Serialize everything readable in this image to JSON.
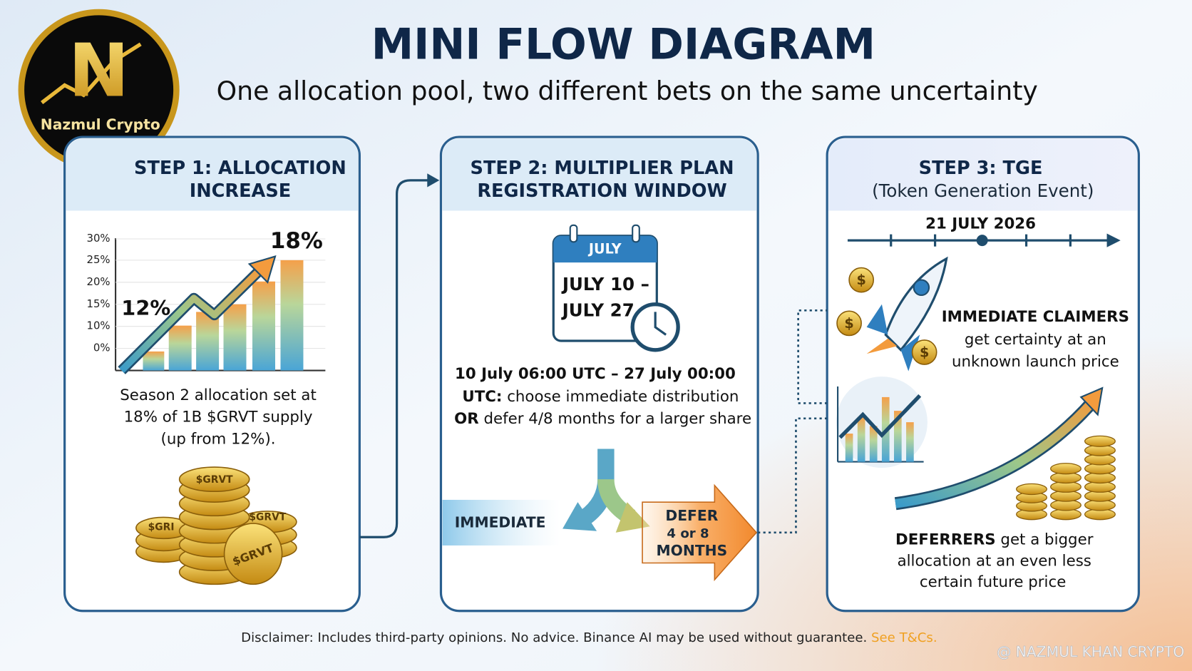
{
  "logo": {
    "name": "Nazmul Crypto",
    "letter": "N"
  },
  "header": {
    "title": "MINI FLOW DIAGRAM",
    "subtitle": "One allocation pool, two different bets on the same uncertainty"
  },
  "steps": [
    {
      "title_lines": [
        "STEP 1: ALLOCATION",
        "INCREASE"
      ],
      "axis_labels": [
        "30%",
        "25%",
        "20%",
        "15%",
        "10%",
        "0%"
      ],
      "start_label": "12%",
      "end_label": "18%",
      "text_lines": [
        "Season 2 allocation set at",
        "18% of 1B $GRVT supply",
        "(up from 12%)."
      ],
      "coin_labels": [
        "$GRVT",
        "$GRVT",
        "$GRI",
        "$GRVT"
      ]
    },
    {
      "title_lines": [
        "STEP 2: MULTIPLIER PLAN",
        "REGISTRATION WINDOW"
      ],
      "calendar": {
        "month": "JULY",
        "lines": [
          "JULY 10 –",
          "JULY 27"
        ]
      },
      "text_lines": [
        {
          "bold": "10 July 06:00 UTC – 27 July 00:00",
          "rest": ""
        },
        {
          "bold": "UTC:",
          "rest": " choose immediate distribution"
        },
        {
          "bold": "OR",
          "rest": " defer 4/8 months for a larger share"
        }
      ],
      "immediate_label": "IMMEDIATE",
      "defer_lines": [
        "DEFER",
        "4 or 8",
        "MONTHS"
      ]
    },
    {
      "title_lines": [
        "STEP 3: TGE",
        "(Token Generation Event)"
      ],
      "date": "21 JULY 2026",
      "coin_symbol": "$",
      "immediate": {
        "bold": "IMMEDIATE CLAIMERS",
        "lines": [
          "get certainty at an",
          "unknown launch price"
        ]
      },
      "deferrers": {
        "bold": "DEFERRERS",
        "rest": " get a bigger",
        "lines": [
          "allocation at an even less",
          "certain future price"
        ]
      }
    }
  ],
  "footer": {
    "disclaimer": "Disclaimer: Includes third-party opinions. No advice. Binance AI may be used without guarantee. ",
    "link": "See T&Cs.",
    "watermark": "@ NAZMUL KHAN CRYPTO"
  }
}
